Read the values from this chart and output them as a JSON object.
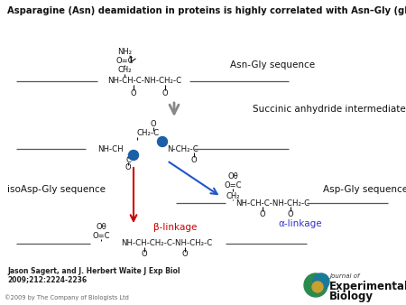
{
  "title": "Asparagine (Asn) deamidation in proteins is highly correlated with Asn–Gly (glycine) sequences.",
  "bg_color": "#ffffff",
  "citation_line1": "Jason Sagert, and J. Herbert Waite J Exp Biol",
  "citation_line2": "2009;212:2224-2236",
  "copyright": "©2009 by The Company of Biologists Ltd",
  "labels": {
    "asn_gly": "Asn-Gly sequence",
    "succinic": "Succinic anhydride intermediate",
    "asp_gly": "Asp-Gly sequence",
    "isoasp_gly": "isoAsp-Gly sequence",
    "beta_linkage": "β-linkage",
    "alpha_linkage": "α-linkage"
  },
  "label_colors": {
    "beta_linkage": "#cc0000",
    "alpha_linkage": "#3333cc"
  },
  "chain_color": "#555555",
  "text_color": "#111111",
  "arrow_color": "#555555"
}
